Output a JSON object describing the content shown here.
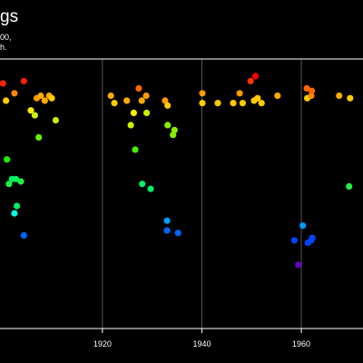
{
  "chart_data": {
    "type": "scatter",
    "title": "gs",
    "subtitle": "00,\nh.",
    "xlabel": "",
    "ylabel": "",
    "x_ticks": [
      1920,
      1940,
      1960
    ],
    "xlim": [
      1899.4,
      1972.4
    ],
    "ylim": [
      -15,
      95
    ],
    "grid": true,
    "color_scale": "rainbow (value → red high, violet low)",
    "points": [
      {
        "x": 1900.0,
        "y": 85,
        "color": "#ff2200"
      },
      {
        "x": 1900.6,
        "y": 78,
        "color": "#ffcc00"
      },
      {
        "x": 1900.8,
        "y": 54,
        "color": "#22ee00"
      },
      {
        "x": 1901.2,
        "y": 44,
        "color": "#22ee44"
      },
      {
        "x": 1901.8,
        "y": 46,
        "color": "#00ee66"
      },
      {
        "x": 1902.3,
        "y": 81,
        "color": "#ff8800"
      },
      {
        "x": 1902.6,
        "y": 46,
        "color": "#00ee66"
      },
      {
        "x": 1902.3,
        "y": 32,
        "color": "#00ffdd"
      },
      {
        "x": 1902.8,
        "y": 35,
        "color": "#00ee66"
      },
      {
        "x": 1903.6,
        "y": 45,
        "color": "#22ee44"
      },
      {
        "x": 1904.2,
        "y": 23,
        "color": "#0066ff"
      },
      {
        "x": 1904.2,
        "y": 86,
        "color": "#ff2200"
      },
      {
        "x": 1905.6,
        "y": 74,
        "color": "#ffee00"
      },
      {
        "x": 1906.4,
        "y": 72,
        "color": "#ccee00"
      },
      {
        "x": 1906.8,
        "y": 79,
        "color": "#ff9900"
      },
      {
        "x": 1907.2,
        "y": 63,
        "color": "#66ee00"
      },
      {
        "x": 1907.6,
        "y": 80,
        "color": "#ffaa00"
      },
      {
        "x": 1908.4,
        "y": 78,
        "color": "#ffaa00"
      },
      {
        "x": 1909.3,
        "y": 80,
        "color": "#ffaa00"
      },
      {
        "x": 1909.8,
        "y": 79,
        "color": "#ffcc00"
      },
      {
        "x": 1910.6,
        "y": 70,
        "color": "#ccee00"
      },
      {
        "x": 1921.7,
        "y": 80,
        "color": "#ffaa00"
      },
      {
        "x": 1922.4,
        "y": 77,
        "color": "#ffcc00"
      },
      {
        "x": 1924.9,
        "y": 78,
        "color": "#ffaa00"
      },
      {
        "x": 1925.7,
        "y": 68,
        "color": "#ccee00"
      },
      {
        "x": 1926.3,
        "y": 73,
        "color": "#ffee00"
      },
      {
        "x": 1926.6,
        "y": 58,
        "color": "#44ee00"
      },
      {
        "x": 1927.3,
        "y": 83,
        "color": "#ff6600"
      },
      {
        "x": 1927.9,
        "y": 78,
        "color": "#ffaa00"
      },
      {
        "x": 1928.0,
        "y": 44,
        "color": "#00ee66"
      },
      {
        "x": 1928.8,
        "y": 80,
        "color": "#ff9900"
      },
      {
        "x": 1928.9,
        "y": 73,
        "color": "#ccee00"
      },
      {
        "x": 1929.7,
        "y": 42,
        "color": "#00ee66"
      },
      {
        "x": 1932.6,
        "y": 78,
        "color": "#ff9900"
      },
      {
        "x": 1933.1,
        "y": 76,
        "color": "#ffcc00"
      },
      {
        "x": 1933.1,
        "y": 68,
        "color": "#88ee00"
      },
      {
        "x": 1933.0,
        "y": 29,
        "color": "#0099ff"
      },
      {
        "x": 1933.0,
        "y": 25,
        "color": "#0066ff"
      },
      {
        "x": 1934.2,
        "y": 64,
        "color": "#88ee00"
      },
      {
        "x": 1934.5,
        "y": 66,
        "color": "#88ee00"
      },
      {
        "x": 1935.2,
        "y": 24,
        "color": "#0066ff"
      },
      {
        "x": 1940.1,
        "y": 81,
        "color": "#ff9900"
      },
      {
        "x": 1940.1,
        "y": 77,
        "color": "#ffcc00"
      },
      {
        "x": 1943.2,
        "y": 77,
        "color": "#ffcc00"
      },
      {
        "x": 1946.3,
        "y": 77,
        "color": "#ffcc00"
      },
      {
        "x": 1947.6,
        "y": 81,
        "color": "#ff9900"
      },
      {
        "x": 1948.2,
        "y": 77,
        "color": "#ffcc00"
      },
      {
        "x": 1949.8,
        "y": 86,
        "color": "#ff3300"
      },
      {
        "x": 1950.5,
        "y": 78,
        "color": "#ffcc00"
      },
      {
        "x": 1950.8,
        "y": 88,
        "color": "#ff0000"
      },
      {
        "x": 1951.2,
        "y": 79,
        "color": "#ffcc00"
      },
      {
        "x": 1952.0,
        "y": 77,
        "color": "#ffcc00"
      },
      {
        "x": 1955.2,
        "y": 80,
        "color": "#ffaa00"
      },
      {
        "x": 1958.6,
        "y": 21,
        "color": "#0044ff"
      },
      {
        "x": 1959.4,
        "y": 11,
        "color": "#6600cc"
      },
      {
        "x": 1960.3,
        "y": 27,
        "color": "#0099ff"
      },
      {
        "x": 1961.3,
        "y": 20,
        "color": "#0044ff"
      },
      {
        "x": 1962.0,
        "y": 21,
        "color": "#0044ff"
      },
      {
        "x": 1962.2,
        "y": 22,
        "color": "#0044ff"
      },
      {
        "x": 1961.1,
        "y": 83,
        "color": "#ff6600"
      },
      {
        "x": 1961.2,
        "y": 79,
        "color": "#ffcc00"
      },
      {
        "x": 1962.0,
        "y": 80,
        "color": "#ff8800"
      },
      {
        "x": 1962.1,
        "y": 82,
        "color": "#ff6600"
      },
      {
        "x": 1967.6,
        "y": 80,
        "color": "#ffaa00"
      },
      {
        "x": 1969.6,
        "y": 43,
        "color": "#22ee44"
      },
      {
        "x": 1969.8,
        "y": 79,
        "color": "#ffcc00"
      }
    ]
  }
}
